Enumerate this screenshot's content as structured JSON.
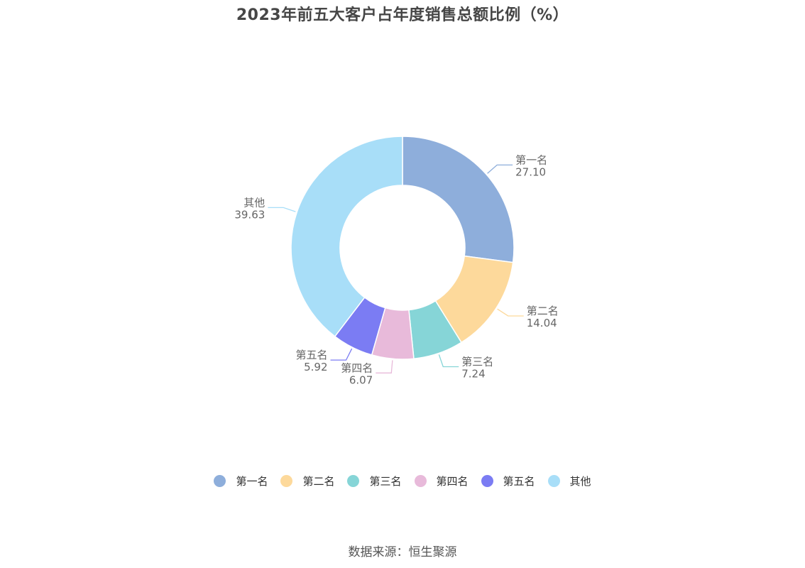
{
  "chart_data": {
    "type": "pie",
    "variant": "donut",
    "title": "2023年前五大客户占年度销售总额比例（%）",
    "categories": [
      "第一名",
      "第二名",
      "第三名",
      "第四名",
      "第五名",
      "其他"
    ],
    "values": [
      27.1,
      14.04,
      7.24,
      6.07,
      5.92,
      39.63
    ],
    "value_labels": [
      "27.10",
      "14.04",
      "7.24",
      "6.07",
      "5.92",
      "39.63"
    ],
    "colors": [
      "#8eaedb",
      "#fdd99b",
      "#86d5d7",
      "#e8bada",
      "#7b7cf3",
      "#a8def8"
    ],
    "legend_position": "bottom",
    "start_angle": "12 o'clock, clockwise"
  },
  "source_text": "数据来源：恒生聚源"
}
